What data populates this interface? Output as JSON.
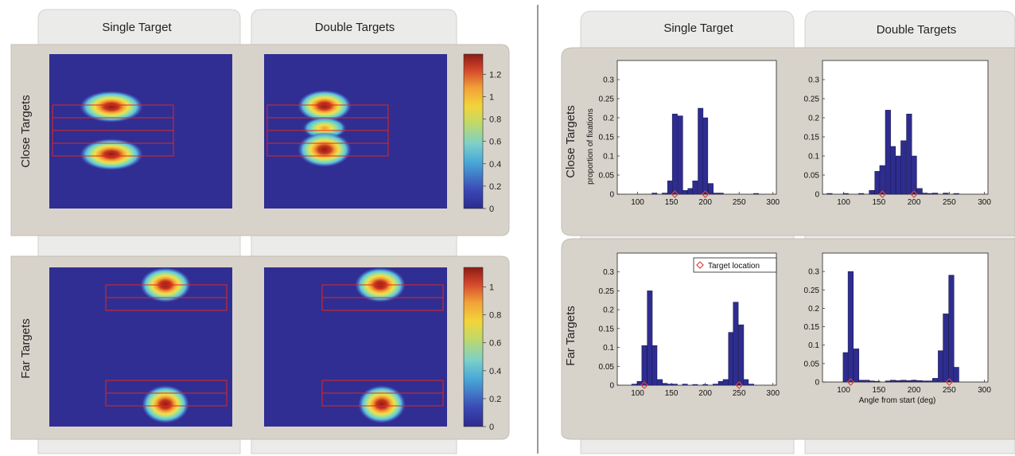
{
  "columns": {
    "single": "Single Target",
    "double": "Double Targets"
  },
  "rows": {
    "close": "Close Targets",
    "far": "Far Targets"
  },
  "colorbars": [
    {
      "ticks": [
        {
          "label": "1.2",
          "value": 1.2
        },
        {
          "label": "1",
          "value": 1.0
        },
        {
          "label": "0.8",
          "value": 0.8
        },
        {
          "label": "0.6",
          "value": 0.6
        },
        {
          "label": "0.4",
          "value": 0.4
        },
        {
          "label": "0.2",
          "value": 0.2
        },
        {
          "label": "0",
          "value": 0
        }
      ],
      "max": 1.38
    },
    {
      "ticks": [
        {
          "label": "1",
          "value": 1.0
        },
        {
          "label": "0.8",
          "value": 0.8
        },
        {
          "label": "0.6",
          "value": 0.6
        },
        {
          "label": "0.4",
          "value": 0.4
        },
        {
          "label": "0.2",
          "value": 0.2
        },
        {
          "label": "0",
          "value": 0
        }
      ],
      "max": 1.14
    }
  ],
  "histograms": {
    "ylabel": "proportion of fixations",
    "xlabel": "Angle from start (deg)",
    "legend": "Target location",
    "marker_color": "#d9453f",
    "bar_color": "#2e2d8f"
  },
  "chart_data": [
    {
      "type": "bar",
      "panel": "close-single",
      "xlim": [
        70,
        305
      ],
      "ylim": [
        0,
        0.35
      ],
      "x_ticks": [
        "100",
        "150",
        "200",
        "250",
        "300"
      ],
      "y_ticks": [
        "0",
        "0.05",
        "0.1",
        "0.15",
        "0.2",
        "0.25",
        "0.3"
      ],
      "bin_width": 7.5,
      "x": [
        125,
        140,
        148,
        155,
        163,
        170,
        178,
        185,
        193,
        200,
        208,
        215,
        223,
        275
      ],
      "values": [
        0.003,
        0.003,
        0.035,
        0.21,
        0.205,
        0.01,
        0.015,
        0.035,
        0.225,
        0.2,
        0.028,
        0.003,
        0.003,
        0.002
      ],
      "targets": [
        155,
        200
      ]
    },
    {
      "type": "bar",
      "panel": "close-double",
      "xlim": [
        70,
        305
      ],
      "ylim": [
        0,
        0.35
      ],
      "x_ticks": [
        "100",
        "150",
        "200",
        "250",
        "300"
      ],
      "y_ticks": [
        "0",
        "0.05",
        "0.1",
        "0.15",
        "0.2",
        "0.25",
        "0.3"
      ],
      "bin_width": 7.5,
      "x": [
        80,
        103,
        125,
        140,
        148,
        155,
        163,
        170,
        178,
        185,
        193,
        200,
        208,
        215,
        223,
        230,
        245,
        260
      ],
      "values": [
        0.002,
        0.002,
        0.002,
        0.01,
        0.06,
        0.075,
        0.22,
        0.125,
        0.1,
        0.14,
        0.21,
        0.1,
        0.015,
        0.003,
        0.002,
        0.003,
        0.003,
        0.002
      ],
      "targets": [
        155,
        200
      ]
    },
    {
      "type": "bar",
      "panel": "far-single",
      "xlim": [
        70,
        305
      ],
      "ylim": [
        0,
        0.35
      ],
      "x_ticks": [
        "100",
        "150",
        "200",
        "250",
        "300"
      ],
      "y_ticks": [
        "0",
        "0.05",
        "0.1",
        "0.15",
        "0.2",
        "0.25",
        "0.3"
      ],
      "bin_width": 7.5,
      "x": [
        95,
        103,
        110,
        118,
        125,
        133,
        140,
        148,
        155,
        170,
        185,
        200,
        215,
        223,
        230,
        238,
        245,
        253,
        260,
        268
      ],
      "values": [
        0.003,
        0.01,
        0.105,
        0.25,
        0.105,
        0.015,
        0.005,
        0.003,
        0.003,
        0.003,
        0.002,
        0.002,
        0.003,
        0.01,
        0.015,
        0.14,
        0.22,
        0.16,
        0.015,
        0.003
      ],
      "targets": [
        110,
        250
      ]
    },
    {
      "type": "bar",
      "panel": "far-double",
      "xlim": [
        70,
        305
      ],
      "ylim": [
        0,
        0.35
      ],
      "x_ticks": [
        "100",
        "150",
        "200",
        "250",
        "300"
      ],
      "y_ticks": [
        "0",
        "0.05",
        "0.1",
        "0.15",
        "0.2",
        "0.25",
        "0.3"
      ],
      "bin_width": 7.5,
      "x": [
        103,
        110,
        118,
        125,
        133,
        140,
        148,
        163,
        170,
        178,
        185,
        193,
        200,
        208,
        215,
        223,
        230,
        238,
        245,
        253,
        260
      ],
      "values": [
        0.08,
        0.3,
        0.09,
        0.005,
        0.005,
        0.003,
        0.002,
        0.003,
        0.005,
        0.004,
        0.005,
        0.004,
        0.005,
        0.004,
        0.003,
        0.003,
        0.01,
        0.085,
        0.185,
        0.29,
        0.04
      ],
      "targets": [
        110,
        250
      ]
    }
  ]
}
